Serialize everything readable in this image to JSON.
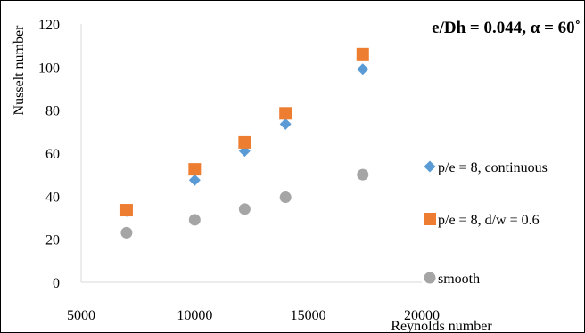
{
  "chart_data": {
    "type": "scatter",
    "title": "e/Dh = 0.044, α = 60˚",
    "xlabel": "Reynolds number",
    "ylabel": "Nusselt number",
    "xlim": [
      5000,
      20000
    ],
    "ylim": [
      0,
      120
    ],
    "x_ticks": [
      "5000",
      "10000",
      "15000",
      "20000"
    ],
    "y_ticks": [
      "0",
      "20",
      "40",
      "60",
      "80",
      "100",
      "120"
    ],
    "grid": false,
    "legend_position": "right",
    "series": [
      {
        "name": "p/e = 8, continuous",
        "marker": "diamond",
        "color": "#5B9BD5",
        "x": [
          7000,
          10000,
          12200,
          14000,
          17400
        ],
        "y": [
          33,
          47.5,
          61,
          73.5,
          99
        ]
      },
      {
        "name": "p/e = 8, d/w = 0.6",
        "marker": "square",
        "color": "#ED7D31",
        "x": [
          7000,
          10000,
          12200,
          14000,
          17400
        ],
        "y": [
          33.5,
          52.5,
          65,
          78.5,
          106
        ]
      },
      {
        "name": "smooth",
        "marker": "circle",
        "color": "#A5A5A5",
        "x": [
          7000,
          10000,
          12200,
          14000,
          17400
        ],
        "y": [
          23,
          29,
          34,
          39.5,
          50
        ]
      }
    ]
  }
}
